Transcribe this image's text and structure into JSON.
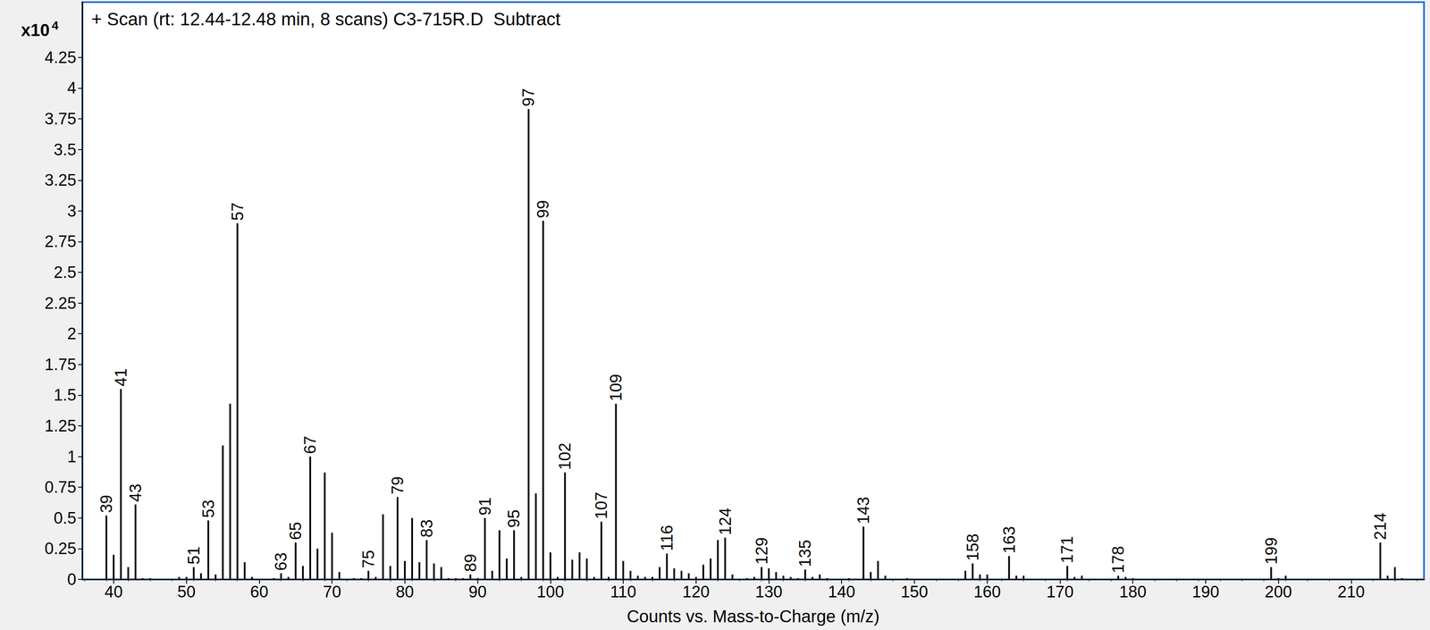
{
  "chart_data": {
    "type": "bar",
    "title": "+ Scan (rt: 12.44-12.48 min, 8 scans) C3-715R.D  Subtract",
    "xlabel": "Counts vs. Mass-to-Charge (m/z)",
    "ylabel": {
      "base": "x10",
      "exponent": "4"
    },
    "color": "#000000",
    "grid": false,
    "xlim": [
      35.7,
      220
    ],
    "xticks": [
      40,
      50,
      60,
      70,
      80,
      90,
      100,
      110,
      120,
      130,
      140,
      150,
      160,
      170,
      180,
      190,
      200,
      210
    ],
    "ylim": [
      0,
      4.7
    ],
    "yticks": [
      0,
      0.25,
      0.5,
      0.75,
      1,
      1.25,
      1.5,
      1.75,
      2,
      2.25,
      2.5,
      2.75,
      3,
      3.25,
      3.5,
      3.75,
      4,
      4.25
    ],
    "annotations": [
      39,
      41,
      43,
      51,
      53,
      57,
      63,
      65,
      67,
      75,
      79,
      83,
      89,
      91,
      95,
      97,
      99,
      102,
      107,
      109,
      116,
      124,
      129,
      135,
      143,
      158,
      163,
      171,
      178,
      199,
      214
    ],
    "x": [
      39,
      40,
      41,
      42,
      43,
      44,
      45,
      49,
      50,
      51,
      52,
      53,
      54,
      55,
      56,
      57,
      58,
      59,
      62,
      63,
      64,
      65,
      66,
      67,
      68,
      69,
      70,
      71,
      73,
      74,
      75,
      76,
      77,
      78,
      79,
      80,
      81,
      82,
      83,
      84,
      85,
      86,
      87,
      88,
      89,
      90,
      91,
      92,
      93,
      94,
      95,
      96,
      97,
      98,
      99,
      100,
      101,
      102,
      103,
      104,
      105,
      106,
      107,
      108,
      109,
      110,
      111,
      112,
      113,
      114,
      115,
      116,
      117,
      118,
      119,
      120,
      121,
      122,
      123,
      124,
      125,
      127,
      128,
      129,
      130,
      131,
      132,
      133,
      134,
      135,
      136,
      137,
      138,
      141,
      143,
      144,
      145,
      146,
      149,
      157,
      158,
      159,
      160,
      163,
      164,
      165,
      171,
      172,
      173,
      178,
      179,
      180,
      199,
      200,
      201,
      214,
      215,
      216,
      217
    ],
    "values": [
      0.52,
      0.2,
      1.55,
      0.1,
      0.61,
      0.01,
      0.01,
      0.02,
      0.02,
      0.1,
      0.05,
      0.48,
      0.04,
      1.09,
      1.43,
      2.9,
      0.14,
      0.02,
      0.01,
      0.05,
      0.02,
      0.3,
      0.11,
      1.0,
      0.25,
      0.87,
      0.38,
      0.06,
      0.01,
      0.01,
      0.07,
      0.02,
      0.53,
      0.11,
      0.67,
      0.15,
      0.5,
      0.14,
      0.32,
      0.13,
      0.1,
      0.01,
      0.01,
      0.01,
      0.04,
      0.01,
      0.5,
      0.07,
      0.4,
      0.17,
      0.4,
      0.02,
      3.83,
      0.7,
      2.92,
      0.22,
      0.02,
      0.87,
      0.16,
      0.22,
      0.17,
      0.02,
      0.47,
      0.02,
      1.43,
      0.15,
      0.07,
      0.03,
      0.02,
      0.02,
      0.1,
      0.21,
      0.09,
      0.07,
      0.05,
      0.02,
      0.12,
      0.17,
      0.32,
      0.34,
      0.04,
      0.01,
      0.02,
      0.1,
      0.09,
      0.06,
      0.03,
      0.02,
      0.01,
      0.08,
      0.02,
      0.04,
      0.01,
      0.01,
      0.43,
      0.06,
      0.15,
      0.03,
      0.01,
      0.07,
      0.13,
      0.04,
      0.04,
      0.19,
      0.03,
      0.03,
      0.11,
      0.02,
      0.03,
      0.03,
      0.02,
      0.01,
      0.1,
      0.01,
      0.03,
      0.3,
      0.03,
      0.1,
      0.01
    ]
  }
}
